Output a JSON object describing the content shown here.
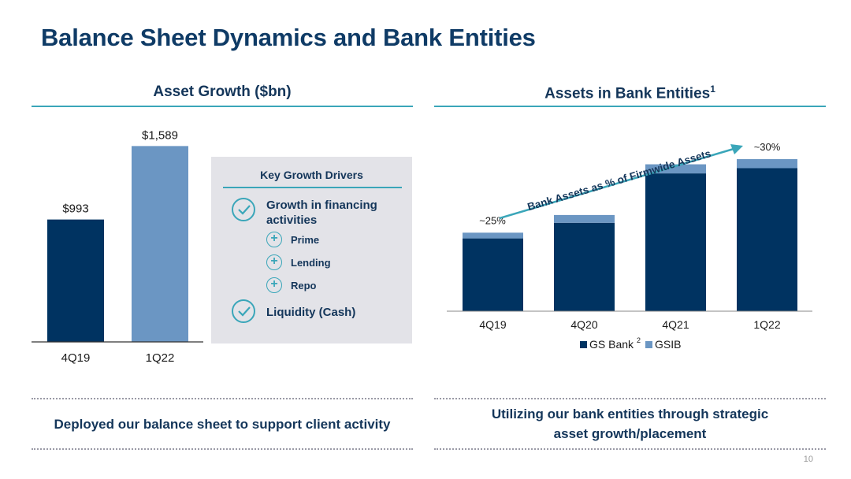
{
  "title": "Balance Sheet Dynamics and Bank Entities",
  "left_panel": {
    "heading": "Asset Growth ($bn)",
    "drivers": {
      "title": "Key Growth Drivers",
      "items": [
        {
          "label": "Growth in financing activities",
          "line1": "Growth in financing",
          "line2": "activities",
          "sub": [
            "Prime",
            "Lending",
            "Repo"
          ]
        },
        {
          "label": "Liquidity (Cash)"
        }
      ]
    },
    "takeaway": "Deployed our balance sheet to support client activity"
  },
  "right_panel": {
    "heading": "Assets in Bank Entities",
    "heading_sup": "1",
    "trend_label": "Bank Assets as % of Firmwide Assets",
    "takeaway_line1": "Utilizing our bank entities through strategic",
    "takeaway_line2": "asset growth/placement"
  },
  "page_number": "10",
  "colors": {
    "navy": "#003361",
    "light_blue": "#6b96c3",
    "teal": "#3aa6b9",
    "title": "#0f3b66"
  },
  "icons": [
    "check-circle-icon",
    "plus-circle-icon",
    "trend-arrow-icon"
  ],
  "chart_data": [
    {
      "type": "bar",
      "title": "Asset Growth ($bn)",
      "categories": [
        "4Q19",
        "1Q22"
      ],
      "values": [
        993,
        1589
      ],
      "labels": [
        "$993",
        "$1,589"
      ],
      "colors": [
        "#003361",
        "#6b96c3"
      ],
      "ylim": [
        0,
        1700
      ],
      "grid": false
    },
    {
      "type": "bar",
      "stacked": true,
      "title": "Assets in Bank Entities",
      "categories": [
        "4Q19",
        "4Q20",
        "4Q21",
        "1Q22"
      ],
      "series": [
        {
          "name": "GS Bank",
          "name_sup": "2",
          "color": "#003361",
          "values": [
            28,
            34,
            53,
            55
          ]
        },
        {
          "name": "GSIB",
          "color": "#6b96c3",
          "values": [
            2.2,
            3.0,
            3.5,
            3.5
          ]
        }
      ],
      "annotations": [
        {
          "category": "4Q19",
          "text": "~25%"
        },
        {
          "category": "1Q22",
          "text": "~30%"
        }
      ],
      "legend": "bottom",
      "grid": false
    }
  ]
}
